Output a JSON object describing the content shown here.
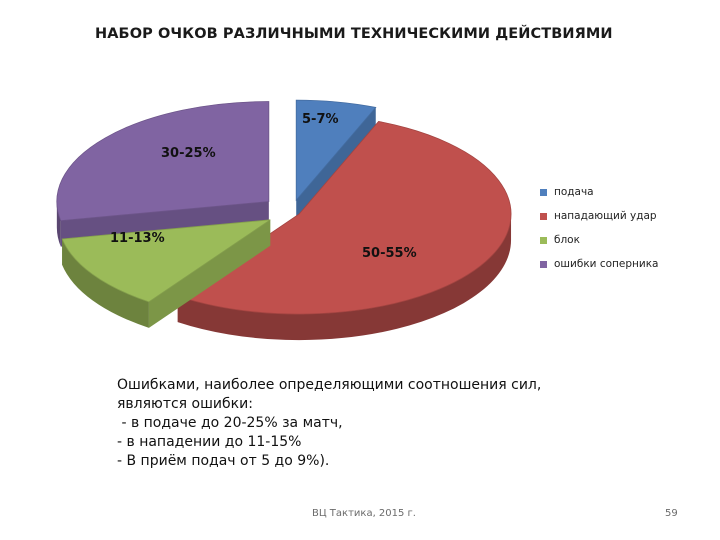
{
  "chart_data": {
    "type": "pie",
    "title": "НАБОР ОЧКОВ РАЗЛИЧНЫМИ ТЕХНИЧЕСКИМИ ДЕЙСТВИЯМИ",
    "view": "3d-exploded",
    "legend_position": "right",
    "slices": [
      {
        "name": "подача",
        "label": "5-7%",
        "value": 6,
        "color": "#4f7fbd"
      },
      {
        "name": "нападающий удар",
        "label": "50-55%",
        "value": 52.5,
        "color": "#c0504d"
      },
      {
        "name": "блок",
        "label": "11-13%",
        "value": 12,
        "color": "#9bbb59"
      },
      {
        "name": "ошибки соперника",
        "label": "30-25%",
        "value": 27.5,
        "color": "#8064a2"
      }
    ]
  },
  "note": {
    "lines": [
      "Ошибками, наиболее определяющими соотношения сил,",
      "являются ошибки:",
      " - в подаче до 20-25% за матч,",
      "- в нападении до 11-15%",
      "- В приём подач от 5 до 9%)."
    ]
  },
  "footer": "ВЦ Тактика, 2015 г.",
  "page_number": "59"
}
